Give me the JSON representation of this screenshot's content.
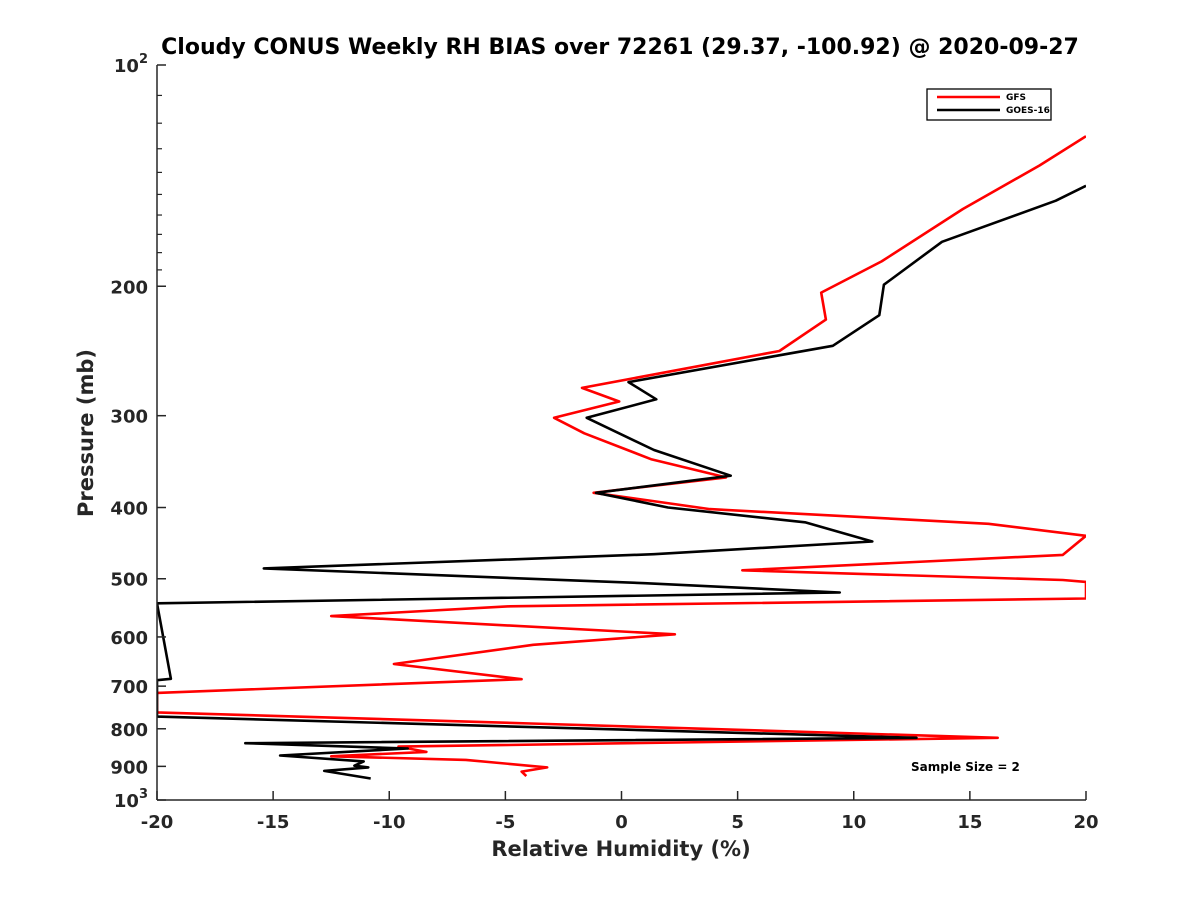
{
  "chart_data": {
    "type": "line",
    "title": "Cloudy CONUS Weekly RH BIAS over 72261 (29.37, -100.92) @ 2020-09-27",
    "xlabel": "Relative Humidity (%)",
    "ylabel": "Pressure (mb)",
    "xlim": [
      -20,
      20
    ],
    "ylim": [
      1000,
      100
    ],
    "y_scale": "log",
    "y_reversed": true,
    "x_ticks": [
      "-20",
      "-15",
      "-10",
      "-5",
      "0",
      "5",
      "10",
      "15",
      "20"
    ],
    "y_ticks": [
      {
        "value": 100,
        "label": "10",
        "sup": "2"
      },
      {
        "value": 200,
        "label": "200",
        "sup": ""
      },
      {
        "value": 300,
        "label": "300",
        "sup": ""
      },
      {
        "value": 400,
        "label": "400",
        "sup": ""
      },
      {
        "value": 500,
        "label": "500",
        "sup": ""
      },
      {
        "value": 600,
        "label": "600",
        "sup": ""
      },
      {
        "value": 700,
        "label": "700",
        "sup": ""
      },
      {
        "value": 800,
        "label": "800",
        "sup": ""
      },
      {
        "value": 900,
        "label": "900",
        "sup": ""
      },
      {
        "value": 1000,
        "label": "10",
        "sup": "3"
      }
    ],
    "grid": false,
    "legend_position": "top-right",
    "annotation": "Sample Size = 2",
    "series": [
      {
        "name": "GFS",
        "color": "#ff0000",
        "points": [
          [
            20,
            125
          ],
          [
            18,
            137
          ],
          [
            14.7,
            157
          ],
          [
            11.2,
            185
          ],
          [
            8.6,
            204
          ],
          [
            8.8,
            222
          ],
          [
            6.8,
            245
          ],
          [
            -1.7,
            275
          ],
          [
            -0.1,
            287
          ],
          [
            -2.9,
            302
          ],
          [
            -1.6,
            317
          ],
          [
            1.3,
            344
          ],
          [
            4.5,
            364
          ],
          [
            -1.2,
            382
          ],
          [
            1.6,
            393
          ],
          [
            3.8,
            402
          ],
          [
            15.8,
            421
          ],
          [
            20,
            437
          ],
          [
            19.0,
            464
          ],
          [
            5.2,
            487
          ],
          [
            19.0,
            502
          ],
          [
            20,
            505
          ],
          [
            20,
            532
          ],
          [
            -4.8,
            545
          ],
          [
            -12.5,
            562
          ],
          [
            2.3,
            595
          ],
          [
            -3.8,
            615
          ],
          [
            -9.8,
            653
          ],
          [
            -4.3,
            685
          ],
          [
            -20,
            715
          ],
          [
            -20,
            760
          ],
          [
            -3.9,
            787
          ],
          [
            16.2,
            823
          ],
          [
            -9.6,
            846
          ],
          [
            -8.4,
            860
          ],
          [
            -12.5,
            872
          ],
          [
            -6.7,
            882
          ],
          [
            -3.2,
            903
          ],
          [
            -4.3,
            915
          ],
          [
            -4.1,
            928
          ]
        ]
      },
      {
        "name": "GOES-16",
        "color": "#000000",
        "points": [
          [
            20,
            146
          ],
          [
            18.7,
            153
          ],
          [
            13.8,
            174
          ],
          [
            11.3,
            199
          ],
          [
            11.1,
            219
          ],
          [
            9.1,
            241
          ],
          [
            0.3,
            270
          ],
          [
            1.5,
            285
          ],
          [
            -1.5,
            302
          ],
          [
            1.4,
            334
          ],
          [
            4.7,
            362
          ],
          [
            -1.1,
            382
          ],
          [
            2.0,
            400
          ],
          [
            7.9,
            419
          ],
          [
            10.8,
            445
          ],
          [
            1.4,
            463
          ],
          [
            -15.4,
            484
          ],
          [
            1.0,
            507
          ],
          [
            9.4,
            522
          ],
          [
            -20,
            540
          ],
          [
            -19.4,
            684
          ],
          [
            -20,
            687
          ],
          [
            -20,
            770
          ],
          [
            12.7,
            823
          ],
          [
            -16.2,
            837
          ],
          [
            -9.2,
            851
          ],
          [
            -14.7,
            870
          ],
          [
            -11.1,
            886
          ],
          [
            -11.5,
            898
          ],
          [
            -10.9,
            903
          ],
          [
            -12.8,
            913
          ],
          [
            -10.8,
            935
          ]
        ]
      }
    ]
  }
}
